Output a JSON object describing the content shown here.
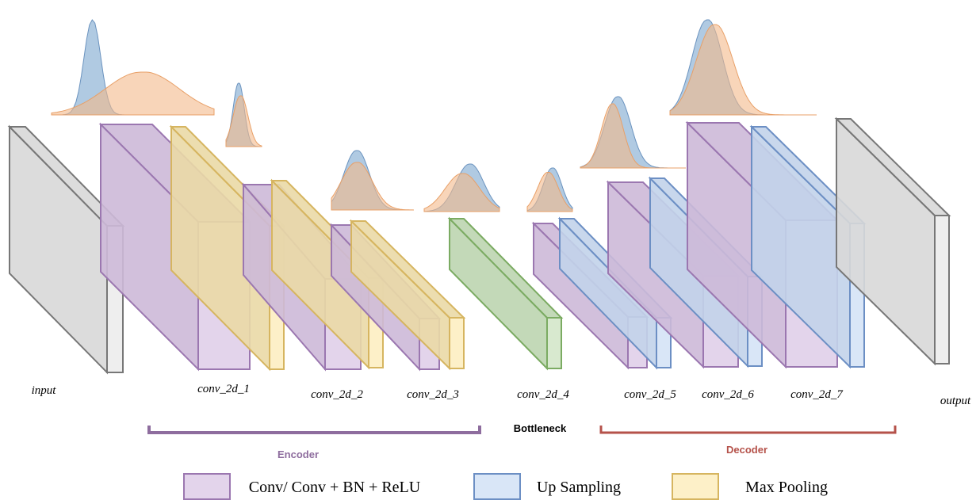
{
  "layers": [
    {
      "label": "input"
    },
    {
      "label": "conv_2d_1"
    },
    {
      "label": "conv_2d_2"
    },
    {
      "label": "conv_2d_3"
    },
    {
      "label": "conv_2d_4"
    },
    {
      "label": "conv_2d_5"
    },
    {
      "label": "conv_2d_6"
    },
    {
      "label": "conv_2d_7"
    },
    {
      "label": "output"
    }
  ],
  "groups": {
    "encoder": "Encoder",
    "bottleneck": "Bottleneck",
    "decoder": "Decoder"
  },
  "legend": [
    {
      "label": "Conv/ Conv + BN + ReLU"
    },
    {
      "label": "Up Sampling"
    },
    {
      "label": "Max Pooling"
    }
  ]
}
